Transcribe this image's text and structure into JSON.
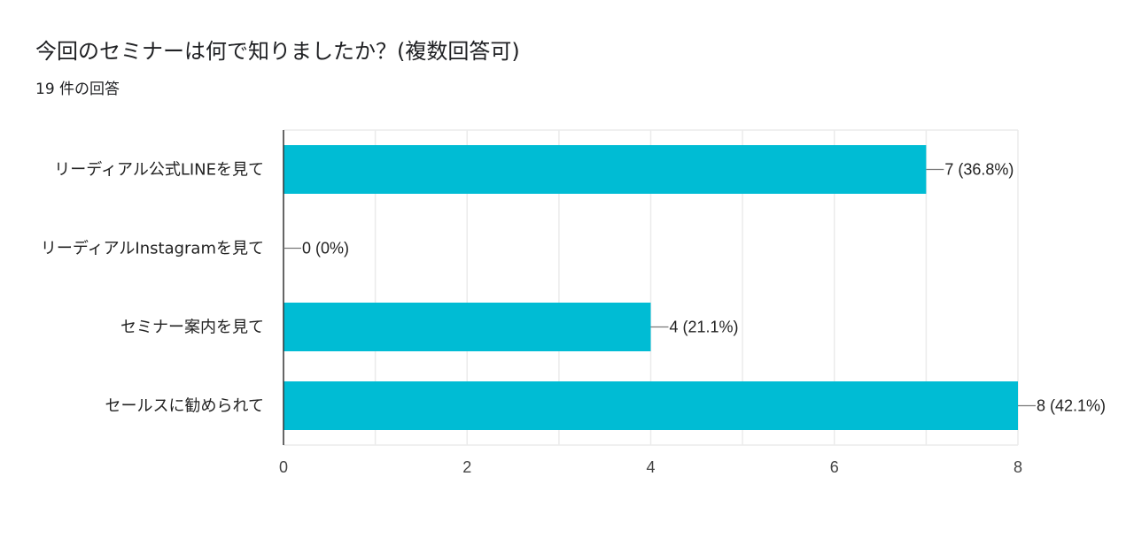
{
  "header": {
    "title": "今回のセミナーは何で知りましたか？(複数回答可)",
    "subtitle": "19 件の回答"
  },
  "colors": {
    "bar": "#00bcd4",
    "grid": "#ebebeb",
    "axis": "#333333",
    "leader": "#777777"
  },
  "chart_data": {
    "type": "bar",
    "orientation": "horizontal",
    "categories": [
      "リーディアル公式LINEを見て",
      "リーディアルInstagramを見て",
      "セミナー案内を見て",
      "セールスに勧められて"
    ],
    "values": [
      7,
      0,
      4,
      8
    ],
    "data_labels": [
      "7 (36.8%)",
      "0 (0%)",
      "4 (21.1%)",
      "8 (42.1%)"
    ],
    "xlim": [
      0,
      8
    ],
    "xticks": [
      0,
      2,
      4,
      6,
      8
    ],
    "grid": true,
    "legend": "none"
  }
}
